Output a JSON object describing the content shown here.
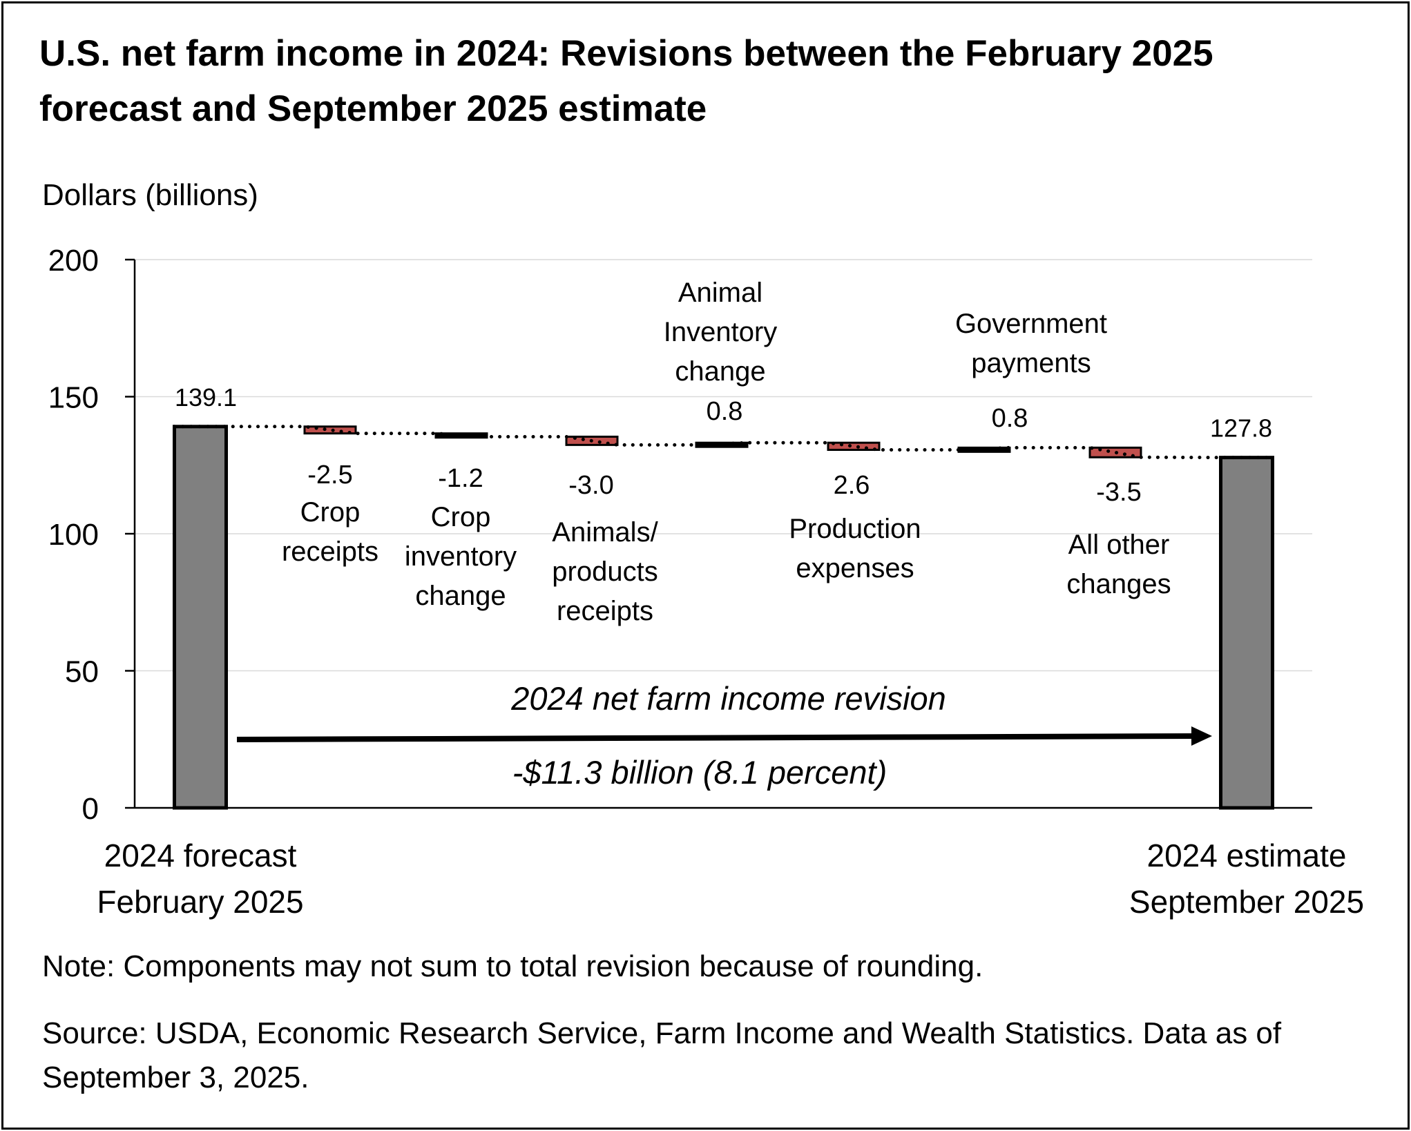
{
  "title": "U.S. net farm income in 2024: Revisions between the February 2025 forecast and September 2025 estimate",
  "y_unit_label": "Dollars (billions)",
  "note": "Note: Components may not sum to total revision because of rounding.",
  "source": "Source: USDA, Economic Research Service, Farm Income and Wealth Statistics. Data as of September 3, 2025.",
  "colors": {
    "total_bar": "#808080",
    "negative_bar": "#c0504d",
    "neutral_bar": "#000000",
    "grid": "#d9d9d9",
    "axis": "#000000"
  },
  "chart_data": {
    "type": "waterfall",
    "ylim": [
      0,
      200
    ],
    "yticks": [
      0,
      50,
      100,
      150,
      200
    ],
    "grid": true,
    "start": {
      "label_lines": [
        "2024 forecast",
        "February 2025"
      ],
      "value": 139.1,
      "value_label": "139.1"
    },
    "end": {
      "label_lines": [
        "2024 estimate",
        "September 2025"
      ],
      "value": 127.8,
      "value_label": "127.8"
    },
    "steps": [
      {
        "label_lines": [
          "Crop",
          "receipts"
        ],
        "value_label": "-2.5",
        "from": 139.1,
        "to": 136.6,
        "color": "negative"
      },
      {
        "label_lines": [
          "Crop",
          "inventory",
          "change"
        ],
        "value_label": "-1.2",
        "from": 136.6,
        "to": 135.4,
        "color": "neutral"
      },
      {
        "label_lines": [
          "Animals/",
          "products",
          "receipts"
        ],
        "value_label": "-3.0",
        "from": 135.4,
        "to": 132.4,
        "color": "negative"
      },
      {
        "label_lines": [
          "Animal",
          "Inventory",
          "change"
        ],
        "value_label": "0.8",
        "from": 132.4,
        "to": 133.2,
        "color": "neutral"
      },
      {
        "label_lines": [
          "Production",
          "expenses"
        ],
        "value_label": "2.6",
        "from": 133.2,
        "to": 130.6,
        "color": "negative"
      },
      {
        "label_lines": [
          "Government",
          "payments"
        ],
        "value_label": "0.8",
        "from": 130.6,
        "to": 131.4,
        "color": "neutral"
      },
      {
        "label_lines": [
          "All other",
          "changes"
        ],
        "value_label": "-3.5",
        "from": 131.4,
        "to": 127.9,
        "color": "negative"
      }
    ],
    "annotation": {
      "text_top": "2024 net farm income revision",
      "text_bottom": "-$11.3 billion (8.1 percent)"
    }
  }
}
